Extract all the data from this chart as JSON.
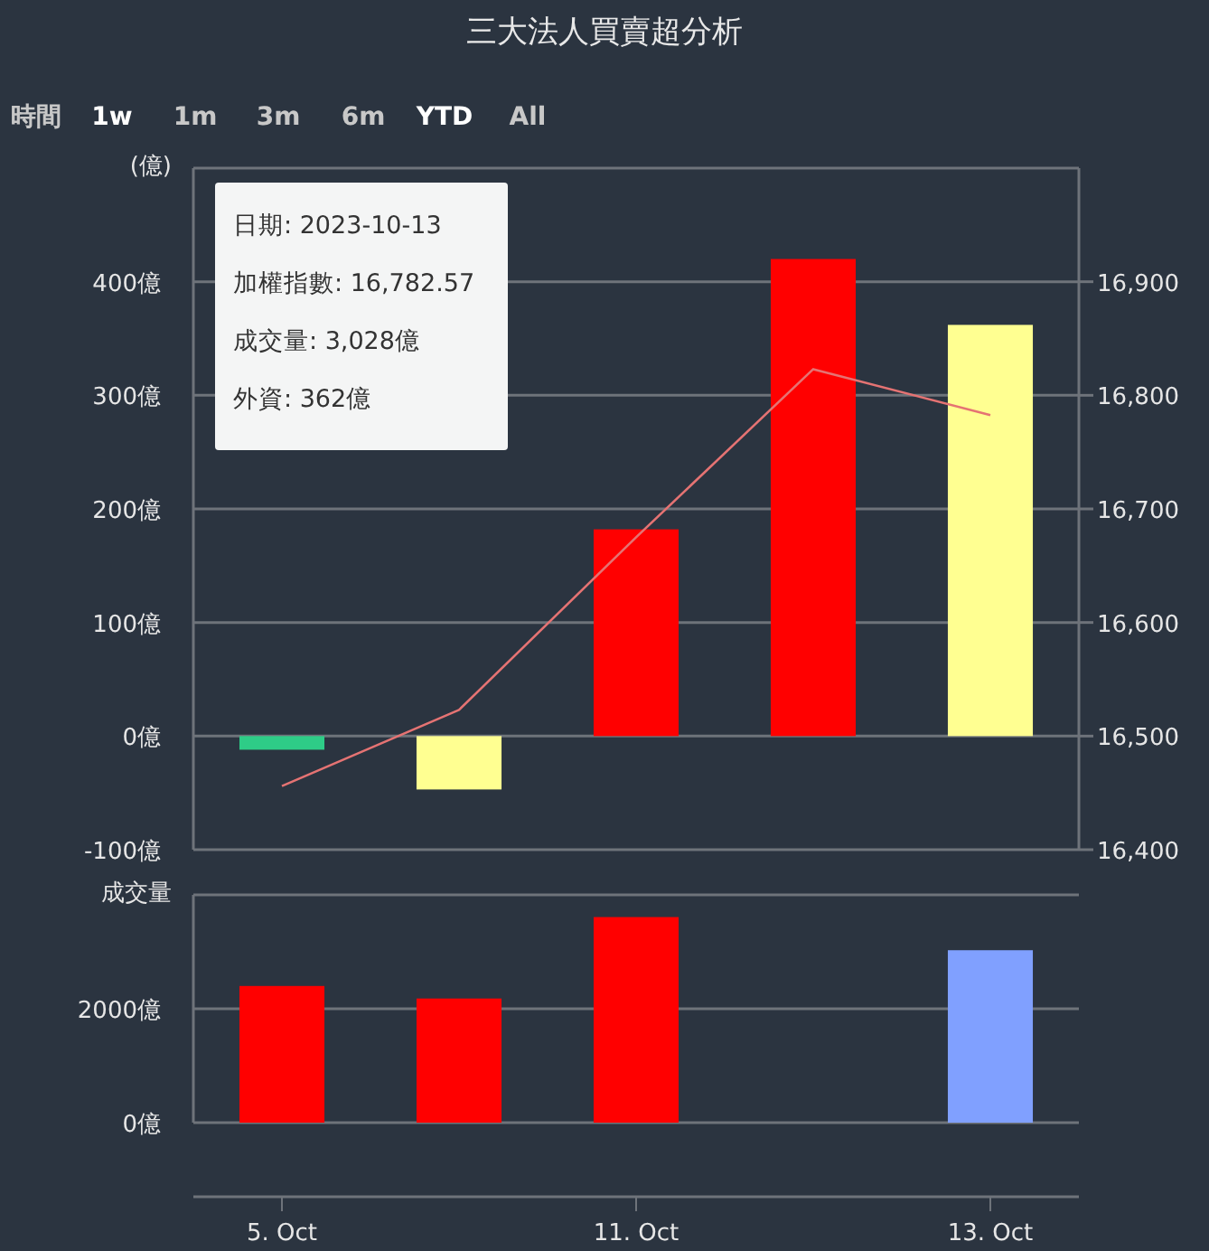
{
  "chart_data": [
    {
      "type": "other",
      "annotations": [
        "時間",
        "1w",
        "1m",
        "3m",
        "6m",
        "YTD",
        "All"
      ]
    },
    {
      "type": "bar",
      "title": "三大法人買賣超分析",
      "ylabel": "(億)",
      "categories": [
        null,
        null,
        null,
        null,
        null
      ],
      "series": [
        {
          "type": "bar",
          "colors": [
            "#2ecc87",
            "#ffff91",
            "#ff0000",
            "#ff0000",
            "#ffff91"
          ],
          "values": [
            -12,
            -47,
            182,
            420,
            362
          ]
        },
        {
          "type": "line",
          "axis": "y2",
          "color": "#e57373",
          "values": [
            16456,
            16523,
            16675,
            16823,
            16782.57
          ]
        }
      ],
      "ylim": [
        -100,
        500
      ],
      "yticks": [
        {
          "value": -100,
          "label": "-100億"
        },
        {
          "value": 0,
          "label": "0億"
        },
        {
          "value": 100,
          "label": "100億"
        },
        {
          "value": 200,
          "label": "200億"
        },
        {
          "value": 300,
          "label": "300億"
        },
        {
          "value": 400,
          "label": "400億"
        },
        {
          "value": 500,
          "label": null
        }
      ],
      "y2lim": [
        16400,
        17000
      ],
      "y2ticks": [
        {
          "value": 16400,
          "label": "16,400"
        },
        {
          "value": 16500,
          "label": "16,500"
        },
        {
          "value": 16600,
          "label": "16,600"
        },
        {
          "value": 16700,
          "label": "16,700"
        },
        {
          "value": 16800,
          "label": "16,800"
        },
        {
          "value": 16900,
          "label": "16,900"
        }
      ],
      "grid": "y",
      "tick_labels": "y",
      "marker": "none",
      "line_style": "solid",
      "annotations": [
        "日期: 2023-10-13",
        "加權指數: 16,782.57",
        "成交量: 3,028億",
        "外資: 362億"
      ]
    },
    {
      "type": "bar",
      "ylabel": "成交量",
      "categories": [
        "5. Oct",
        null,
        "11. Oct",
        null,
        "13. Oct"
      ],
      "values": [
        2400,
        2180,
        3610,
        null,
        3028
      ],
      "colors": [
        "#ff0000",
        "#ff0000",
        "#ff0000",
        null,
        "#80a0ff"
      ],
      "ylim": [
        0,
        4000
      ],
      "yticks": [
        {
          "value": 0,
          "label": "0億"
        },
        {
          "value": 2000,
          "label": "2000億"
        },
        {
          "value": 4000,
          "label": null
        }
      ],
      "grid": "y"
    }
  ]
}
